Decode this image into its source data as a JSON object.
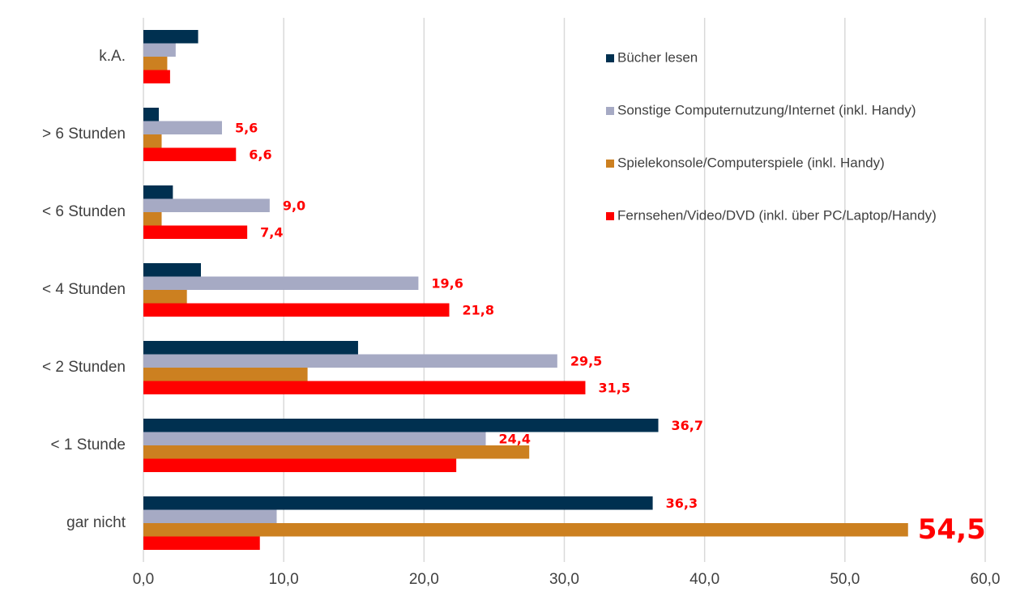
{
  "chart_data": {
    "type": "barh",
    "categories": [
      "k.A.",
      "> 6 Stunden",
      "< 6 Stunden",
      "< 4 Stunden",
      "< 2 Stunden",
      "< 1 Stunde",
      "gar nicht"
    ],
    "series": [
      {
        "name": "Bücher lesen",
        "color": "#003050",
        "values": [
          3.9,
          1.1,
          2.1,
          4.1,
          15.3,
          36.7,
          36.3
        ],
        "value_labels": [
          null,
          null,
          null,
          null,
          null,
          "36,7",
          "36,3"
        ]
      },
      {
        "name": "Sonstige Computernutzung/Internet (inkl. Handy)",
        "color": "#a6aac4",
        "values": [
          2.3,
          5.6,
          9.0,
          19.6,
          29.5,
          24.4,
          9.5
        ],
        "value_labels": [
          null,
          "5,6",
          "9,0",
          "19,6",
          "29,5",
          "24,4",
          null
        ]
      },
      {
        "name": "Spielekonsole/Computerspiele (inkl. Handy)",
        "color": "#cc8020",
        "values": [
          1.7,
          1.3,
          1.3,
          3.1,
          11.7,
          27.5,
          54.5
        ],
        "value_labels": [
          null,
          null,
          null,
          null,
          null,
          null,
          "54,5"
        ]
      },
      {
        "name": "Fernsehen/Video/DVD (inkl. über PC/Laptop/Handy)",
        "color": "#ff0000",
        "values": [
          1.9,
          6.6,
          7.4,
          21.8,
          31.5,
          22.3,
          8.3
        ],
        "value_labels": [
          null,
          "6,6",
          "7,4",
          "21,8",
          "31,5",
          null,
          null
        ]
      }
    ],
    "xlim": [
      0,
      60
    ],
    "xticks": [
      {
        "value": 0,
        "label": "0,0"
      },
      {
        "value": 10,
        "label": "10,0"
      },
      {
        "value": 20,
        "label": "20,0"
      },
      {
        "value": 30,
        "label": "30,0"
      },
      {
        "value": 40,
        "label": "40,0"
      },
      {
        "value": 50,
        "label": "50,0"
      },
      {
        "value": 60,
        "label": "60,0"
      }
    ],
    "grid": true
  }
}
